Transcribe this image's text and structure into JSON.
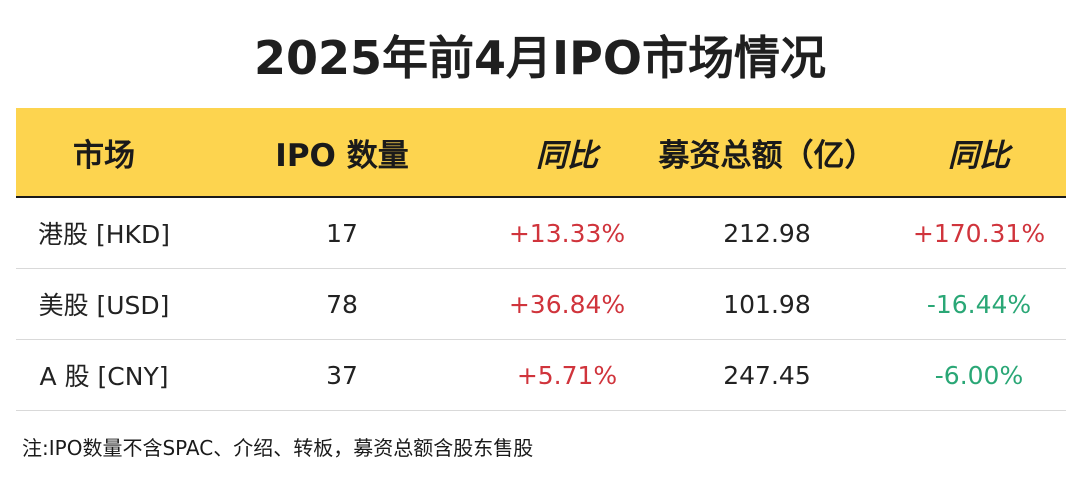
{
  "title": "2025年前4月IPO市场情况",
  "table": {
    "headers": [
      "市场",
      "IPO 数量",
      "同比",
      "募资总额（亿）",
      "同比"
    ],
    "rows": [
      {
        "market": "港股 [HKD]",
        "count": "17",
        "count_yoy": "+13.33%",
        "amount": "212.98",
        "amount_yoy": "+170.31%"
      },
      {
        "market": "美股 [USD]",
        "count": "78",
        "count_yoy": "+36.84%",
        "amount": "101.98",
        "amount_yoy": "-16.44%"
      },
      {
        "market": "A 股 [CNY]",
        "count": "37",
        "count_yoy": "+5.71%",
        "amount": "247.45",
        "amount_yoy": "-6.00%"
      }
    ]
  },
  "note": "注:IPO数量不含SPAC、介绍、转板，募资总额含股东售股",
  "colors": {
    "header_bg": "#fdd44f",
    "positive": "#d0343c",
    "negative": "#2aa776"
  }
}
